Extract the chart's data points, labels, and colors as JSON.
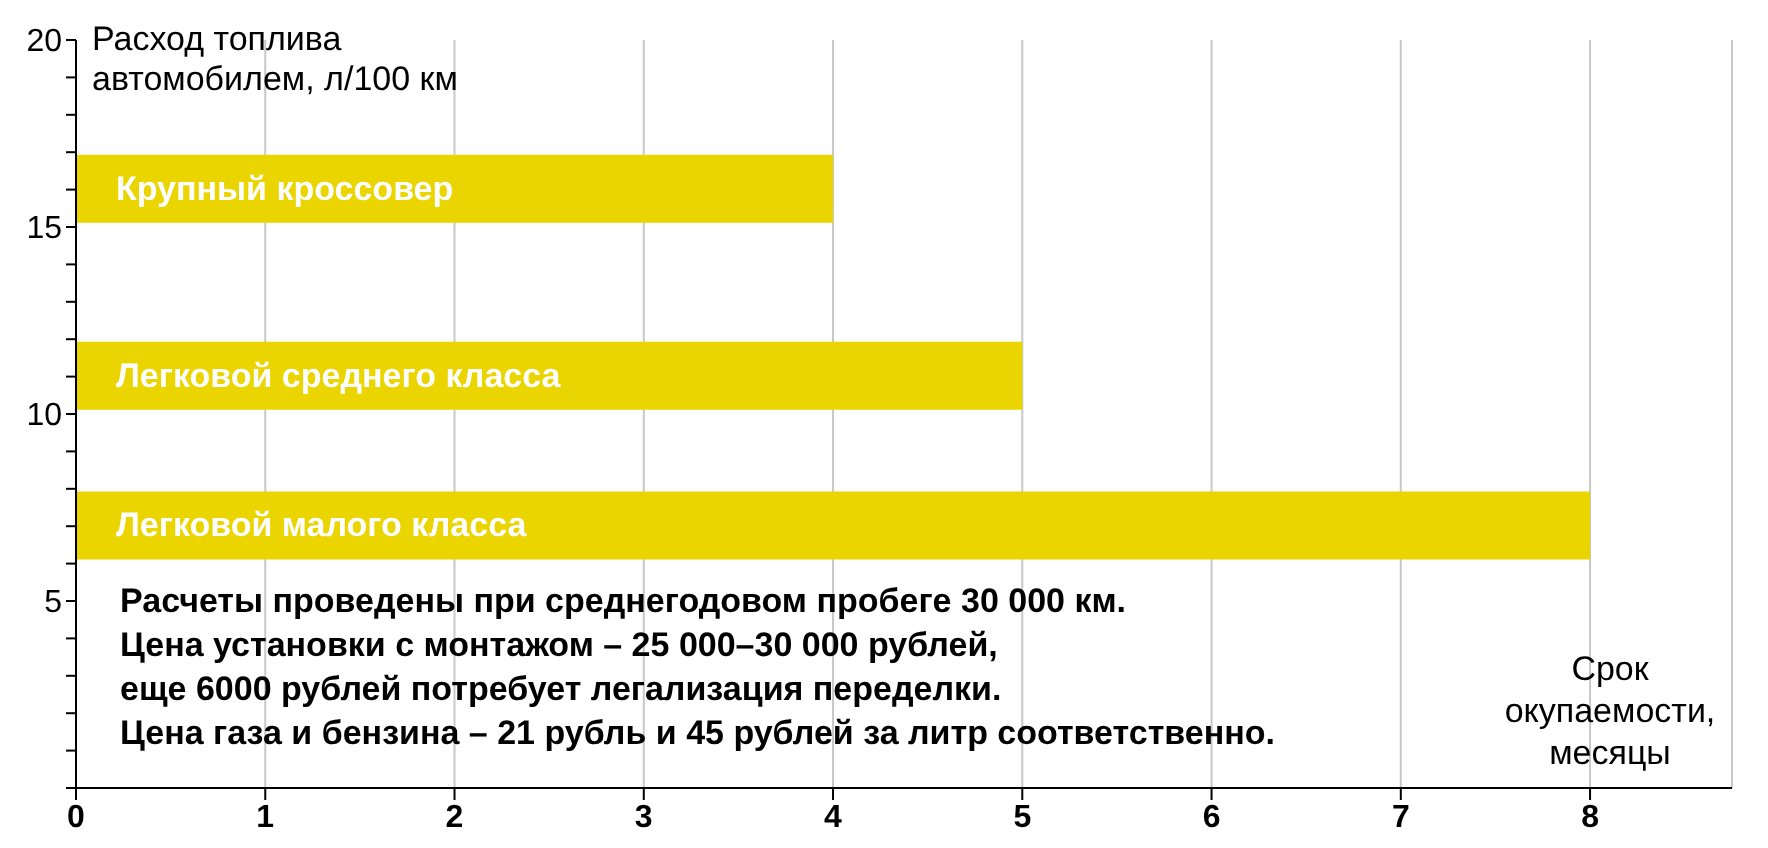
{
  "chart_data": {
    "type": "bar",
    "orientation": "horizontal",
    "xlabel": "Срок окупаемости, месяцы",
    "ylabel": "Расход топлива автомобилем, л/100 км",
    "series": [
      {
        "name": "Крупный кроссовер",
        "color": "#ead500",
        "x": [
          16
        ],
        "values": [
          4
        ]
      },
      {
        "name": "Легковой среднего класса",
        "color": "#ead500",
        "x": [
          11
        ],
        "values": [
          5
        ]
      },
      {
        "name": "Легковой малого класса",
        "color": "#ead500",
        "x": [
          7
        ],
        "values": [
          8
        ]
      }
    ],
    "xlim": [
      0,
      8.75
    ],
    "xticks": [
      0,
      1,
      2,
      3,
      4,
      5,
      6,
      7,
      8
    ],
    "ylim": [
      0,
      20
    ],
    "yticks": [
      {
        "value": 0,
        "label": null
      },
      {
        "value": 1,
        "label": null
      },
      {
        "value": 2,
        "label": null
      },
      {
        "value": 3,
        "label": null
      },
      {
        "value": 4,
        "label": null
      },
      5,
      {
        "value": 6,
        "label": null
      },
      {
        "value": 7,
        "label": null
      },
      {
        "value": 8,
        "label": null
      },
      {
        "value": 9,
        "label": null
      },
      10,
      {
        "value": 11,
        "label": null
      },
      {
        "value": 12,
        "label": null
      },
      {
        "value": 13,
        "label": null
      },
      {
        "value": 14,
        "label": null
      },
      15,
      {
        "value": 16,
        "label": null
      },
      {
        "value": 17,
        "label": null
      },
      {
        "value": 18,
        "label": null
      },
      {
        "value": 19,
        "label": null
      },
      20
    ],
    "grid": "x",
    "annotations": [
      "Расчеты проведены при среднегодовом пробеге 30 000 км.",
      "Цена установки с монтажом – 25 000–30 000 рублей,",
      "еще 6000 рублей потребует легализация переделки.",
      "Цена газа и бензина – 21 рубль и 45 рублей за литр соответственно."
    ]
  }
}
